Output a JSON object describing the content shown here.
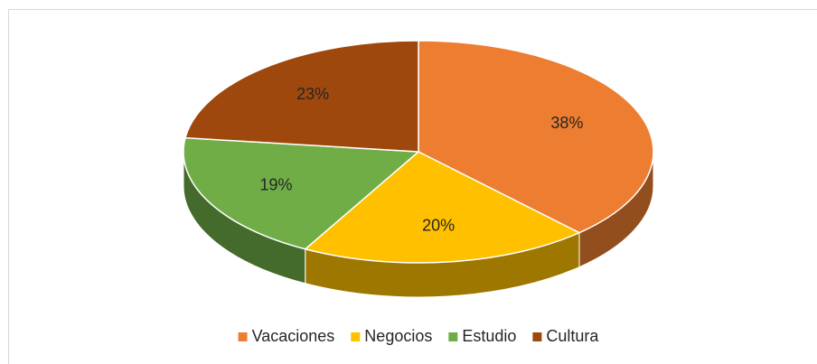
{
  "chart_data": {
    "type": "pie",
    "categories": [
      "Vacaciones",
      "Negocios",
      "Estudio",
      "Cultura"
    ],
    "values": [
      38,
      20,
      19,
      23
    ],
    "value_labels": [
      "38%",
      "20%",
      "19%",
      "23%"
    ],
    "colors": [
      "#ED7D31",
      "#FFC000",
      "#70AD47",
      "#9E480E"
    ],
    "legend": "bottom",
    "three_d": true
  }
}
